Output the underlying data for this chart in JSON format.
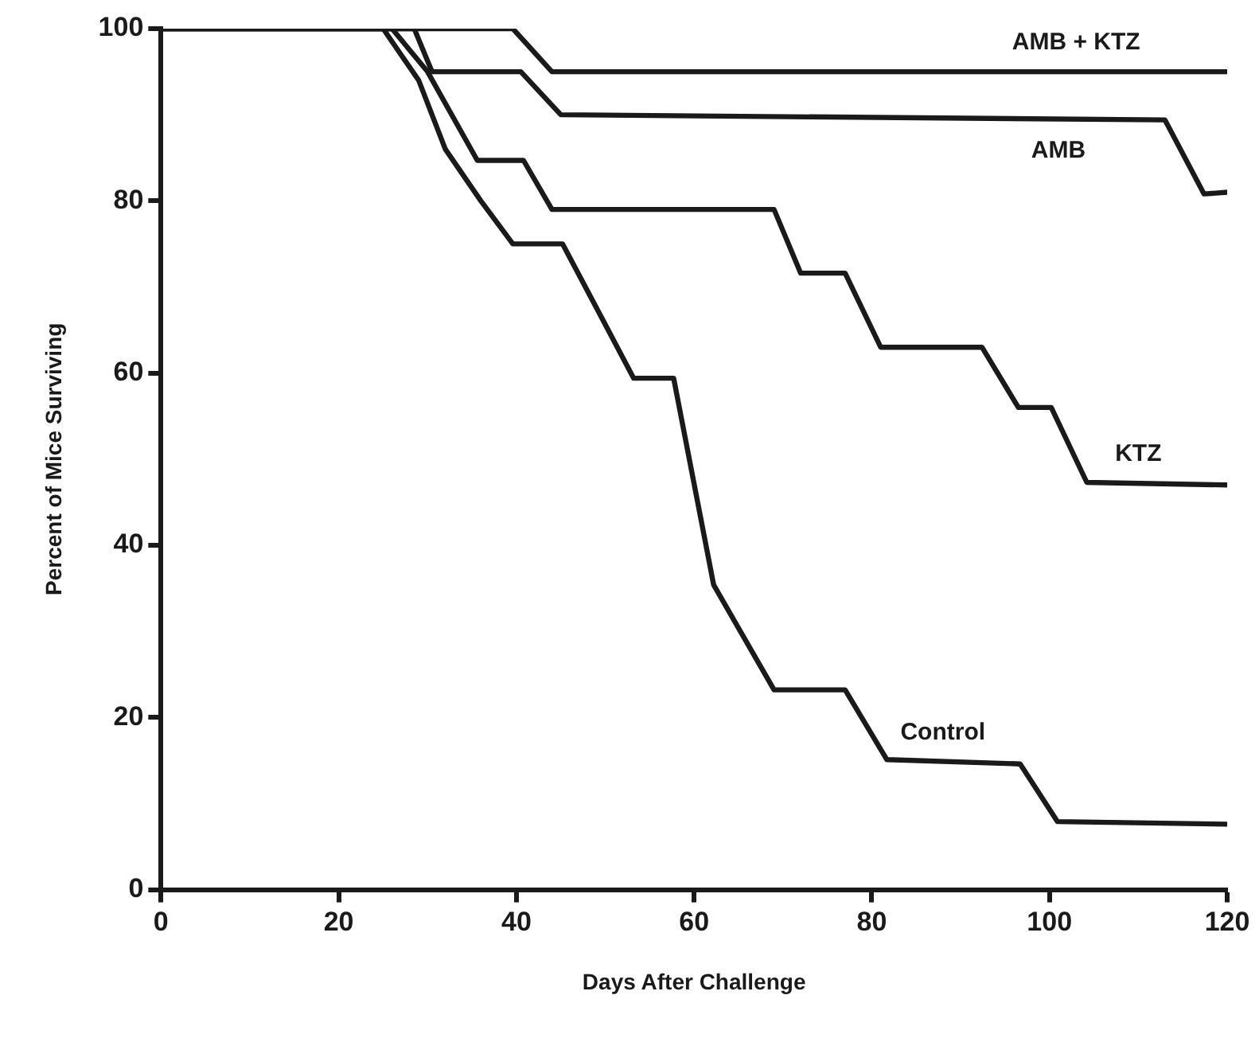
{
  "chart_data": {
    "type": "line",
    "xlabel": "Days After Challenge",
    "ylabel": "Percent of Mice Surviving",
    "xlim": [
      0,
      120
    ],
    "ylim": [
      0,
      100
    ],
    "xticks": [
      0,
      20,
      40,
      60,
      80,
      100,
      120
    ],
    "yticks": [
      0,
      20,
      40,
      60,
      80,
      100
    ],
    "grid": false,
    "legend": false,
    "marker": "none",
    "line_style": "solid",
    "series": [
      {
        "name": "AMB + KTZ",
        "color": "#1a1a1a",
        "x": [
          0,
          39.6,
          44,
          120
        ],
        "values": [
          100,
          100,
          95,
          95
        ]
      },
      {
        "name": "AMB",
        "color": "#1a1a1a",
        "x": [
          0,
          28.5,
          30.5,
          40.5,
          45,
          113,
          117.4,
          120
        ],
        "values": [
          100,
          100,
          95,
          95,
          90,
          89.4,
          80.8,
          81
        ]
      },
      {
        "name": "KTZ",
        "color": "#1a1a1a",
        "x": [
          0,
          26,
          30,
          35.6,
          40.8,
          44,
          69,
          72,
          77,
          81,
          92.4,
          96.5,
          100.2,
          104.2,
          120
        ],
        "values": [
          100,
          100,
          95,
          84.7,
          84.7,
          79,
          79,
          71.6,
          71.6,
          63,
          63,
          56,
          56,
          47.3,
          47
        ]
      },
      {
        "name": "Control",
        "color": "#1a1a1a",
        "x": [
          0,
          25,
          29,
          32,
          36,
          39.6,
          45.2,
          53.2,
          57.7,
          62.2,
          69,
          77,
          81.7,
          96.7,
          100.9,
          120
        ],
        "values": [
          100,
          100,
          94,
          86,
          80,
          75,
          75,
          59.4,
          59.4,
          35.4,
          23.2,
          23.2,
          15.1,
          14.6,
          7.9,
          7.6
        ]
      }
    ]
  }
}
